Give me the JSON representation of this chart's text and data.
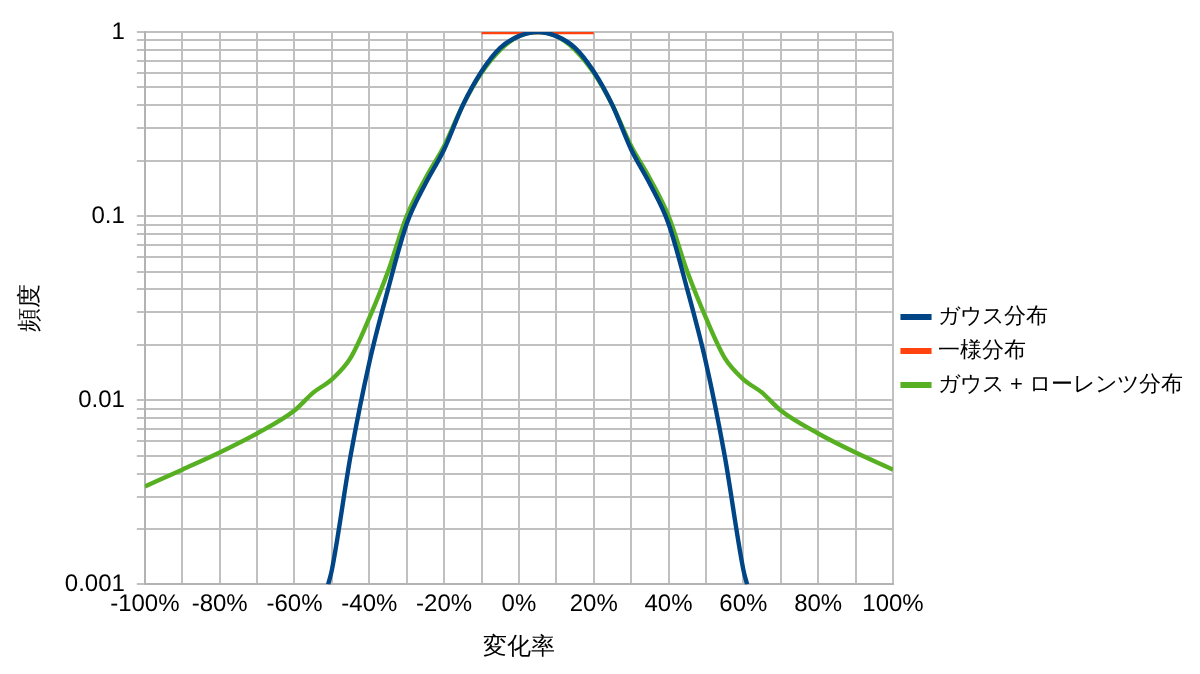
{
  "chart_data": {
    "type": "line",
    "xlabel": "変化率",
    "ylabel": "頻度",
    "xlim": [
      -100,
      100
    ],
    "xticks": [
      {
        "value": -100,
        "label": "-100%"
      },
      {
        "value": -90,
        "label": null
      },
      {
        "value": -80,
        "label": "-80%"
      },
      {
        "value": -70,
        "label": null
      },
      {
        "value": -60,
        "label": "-60%"
      },
      {
        "value": -50,
        "label": null
      },
      {
        "value": -40,
        "label": "-40%"
      },
      {
        "value": -30,
        "label": null
      },
      {
        "value": -20,
        "label": "-20%"
      },
      {
        "value": -10,
        "label": null
      },
      {
        "value": 0,
        "label": "0%"
      },
      {
        "value": 10,
        "label": null
      },
      {
        "value": 20,
        "label": "20%"
      },
      {
        "value": 30,
        "label": null
      },
      {
        "value": 40,
        "label": "40%"
      },
      {
        "value": 50,
        "label": null
      },
      {
        "value": 60,
        "label": "60%"
      },
      {
        "value": 70,
        "label": null
      },
      {
        "value": 80,
        "label": "80%"
      },
      {
        "value": 90,
        "label": null
      },
      {
        "value": 100,
        "label": "100%"
      }
    ],
    "ylim": [
      0.001,
      1
    ],
    "yticks": [
      0.001,
      {
        "value": 0.002,
        "label": null
      },
      {
        "value": 0.003,
        "label": null
      },
      {
        "value": 0.004,
        "label": null
      },
      {
        "value": 0.005,
        "label": null
      },
      {
        "value": 0.006,
        "label": null
      },
      {
        "value": 0.007,
        "label": null
      },
      {
        "value": 0.008,
        "label": null
      },
      {
        "value": 0.009,
        "label": null
      },
      0.01,
      {
        "value": 0.02,
        "label": null
      },
      {
        "value": 0.03,
        "label": null
      },
      {
        "value": 0.04,
        "label": null
      },
      {
        "value": 0.05,
        "label": null
      },
      {
        "value": 0.06,
        "label": null
      },
      {
        "value": 0.07,
        "label": null
      },
      {
        "value": 0.08,
        "label": null
      },
      {
        "value": 0.09,
        "label": null
      },
      0.1,
      {
        "value": 0.2,
        "label": null
      },
      {
        "value": 0.3,
        "label": null
      },
      {
        "value": 0.4,
        "label": null
      },
      {
        "value": 0.5,
        "label": null
      },
      {
        "value": 0.6,
        "label": null
      },
      {
        "value": 0.7,
        "label": null
      },
      {
        "value": 0.8,
        "label": null
      },
      {
        "value": 0.9,
        "label": null
      },
      1
    ],
    "log": "y",
    "grid": true,
    "legend": "right",
    "marker": "none",
    "series": [
      {
        "name": "ガウス分布",
        "color": "#004586",
        "x": [
          -51,
          -50,
          -45,
          -40,
          -35,
          -30,
          -25,
          -20,
          -15,
          -10,
          -5,
          0,
          5,
          10,
          15,
          20,
          25,
          30,
          35,
          40,
          45,
          50,
          55,
          60,
          61
        ],
        "values": [
          0.001,
          0.0012,
          0.005,
          0.016,
          0.04,
          0.091,
          0.15,
          0.23,
          0.4,
          0.61,
          0.82,
          0.95,
          1,
          0.95,
          0.82,
          0.61,
          0.4,
          0.23,
          0.15,
          0.091,
          0.04,
          0.016,
          0.005,
          0.0012,
          0.001
        ]
      },
      {
        "name": "一様分布",
        "color": "#ff420e",
        "x": [
          -10,
          20
        ],
        "values": [
          1,
          1
        ]
      },
      {
        "name": "ガウス + ローレンツ分布",
        "color": "#57b022",
        "x": [
          -100,
          -90,
          -80,
          -70,
          -60,
          -55,
          -50,
          -45,
          -40,
          -35,
          -30,
          -25,
          -20,
          -15,
          -10,
          -5,
          0,
          5,
          10,
          15,
          20,
          25,
          30,
          35,
          40,
          45,
          50,
          55,
          60,
          65,
          70,
          80,
          90,
          100
        ],
        "values": [
          0.0034,
          0.0042,
          0.0052,
          0.0066,
          0.0088,
          0.011,
          0.013,
          0.017,
          0.028,
          0.05,
          0.1,
          0.16,
          0.24,
          0.4,
          0.6,
          0.8,
          0.95,
          1,
          0.95,
          0.8,
          0.6,
          0.4,
          0.24,
          0.16,
          0.1,
          0.05,
          0.028,
          0.017,
          0.013,
          0.011,
          0.0088,
          0.0066,
          0.0052,
          0.0042
        ]
      }
    ]
  }
}
